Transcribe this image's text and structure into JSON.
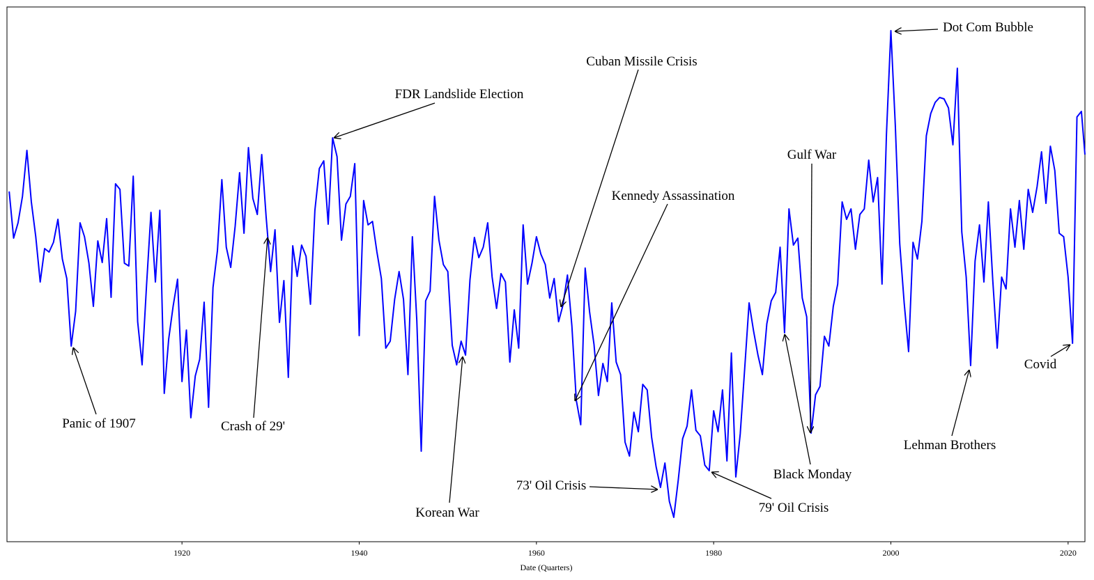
{
  "chart_data": {
    "type": "line",
    "xlabel": "Date (Quarters)",
    "xlim": [
      1900.25,
      2021.9
    ],
    "ylim": [
      0,
      768
    ],
    "xticks": [
      1920,
      1940,
      1960,
      1980,
      2000,
      2020
    ],
    "color": "#0000ff",
    "x": [
      1900.5,
      1901,
      1901.5,
      1902,
      1902.5,
      1903,
      1903.5,
      1904,
      1904.5,
      1905,
      1905.5,
      1906,
      1906.5,
      1907,
      1907.5,
      1908,
      1908.5,
      1909,
      1909.5,
      1910,
      1910.5,
      1911,
      1911.5,
      1912,
      1912.5,
      1913,
      1913.5,
      1914,
      1914.5,
      1915,
      1915.5,
      1916,
      1916.5,
      1917,
      1917.5,
      1918,
      1918.5,
      1919,
      1919.5,
      1920,
      1920.5,
      1921,
      1921.5,
      1922,
      1922.5,
      1923,
      1923.5,
      1924,
      1924.5,
      1925,
      1925.5,
      1926,
      1926.5,
      1927,
      1927.5,
      1928,
      1928.5,
      1929,
      1929.5,
      1930,
      1930.5,
      1931,
      1931.5,
      1932,
      1932.5,
      1933,
      1933.5,
      1934,
      1934.5,
      1935,
      1935.5,
      1936,
      1936.5,
      1937,
      1937.5,
      1938,
      1938.5,
      1939,
      1939.5,
      1940,
      1940.5,
      1941,
      1941.5,
      1942,
      1942.5,
      1943,
      1943.5,
      1944,
      1944.5,
      1945,
      1945.5,
      1946,
      1946.5,
      1947,
      1947.5,
      1948,
      1948.5,
      1949,
      1949.5,
      1950,
      1950.5,
      1951,
      1951.5,
      1952,
      1952.5,
      1953,
      1953.5,
      1954,
      1954.5,
      1955,
      1955.5,
      1956,
      1956.5,
      1957,
      1957.5,
      1958,
      1958.5,
      1959,
      1959.5,
      1960,
      1960.5,
      1961,
      1961.5,
      1962,
      1962.5,
      1963,
      1963.5,
      1964,
      1964.5,
      1965,
      1965.5,
      1966,
      1966.5,
      1967,
      1967.5,
      1968,
      1968.5,
      1969,
      1969.5,
      1970,
      1970.5,
      1971,
      1971.5,
      1972,
      1972.5,
      1973,
      1973.5,
      1974,
      1974.5,
      1975,
      1975.5,
      1976,
      1976.5,
      1977,
      1977.5,
      1978,
      1978.5,
      1979,
      1979.5,
      1980,
      1980.5,
      1981,
      1981.5,
      1982,
      1982.5,
      1983,
      1983.5,
      1984,
      1984.5,
      1985,
      1985.5,
      1986,
      1986.5,
      1987,
      1987.5,
      1988,
      1988.5,
      1989,
      1989.5,
      1990,
      1990.5,
      1991,
      1991.5,
      1992,
      1992.5,
      1993,
      1993.5,
      1994,
      1994.5,
      1995,
      1995.5,
      1996,
      1996.5,
      1997,
      1997.5,
      1998,
      1998.5,
      1999,
      1999.5,
      2000,
      2000.5,
      2001,
      2001.5,
      2002,
      2002.5,
      2003,
      2003.5,
      2004,
      2004.5,
      2005,
      2005.5,
      2006,
      2006.5,
      2007,
      2007.5,
      2008,
      2008.5,
      2009,
      2009.5,
      2010,
      2010.5,
      2011,
      2011.5,
      2012,
      2012.5,
      2013,
      2013.5,
      2014,
      2014.5,
      2015,
      2015.5,
      2016,
      2016.5,
      2017,
      2017.5,
      2018,
      2018.5,
      2019,
      2019.5,
      2020,
      2020.5,
      2021,
      2021.5,
      2021.9
    ],
    "values": [
      503,
      436,
      458,
      496,
      562,
      488,
      438,
      373,
      421,
      416,
      430,
      463,
      406,
      378,
      281,
      331,
      458,
      438,
      400,
      338,
      432,
      401,
      464,
      351,
      514,
      506,
      400,
      396,
      525,
      316,
      254,
      368,
      473,
      373,
      476,
      213,
      291,
      338,
      377,
      230,
      304,
      178,
      238,
      262,
      344,
      193,
      365,
      418,
      520,
      423,
      394,
      453,
      530,
      443,
      566,
      493,
      470,
      556,
      466,
      388,
      448,
      315,
      375,
      236,
      425,
      381,
      426,
      410,
      341,
      476,
      536,
      547,
      456,
      580,
      553,
      433,
      485,
      496,
      543,
      296,
      490,
      455,
      460,
      416,
      378,
      278,
      288,
      348,
      388,
      348,
      240,
      438,
      318,
      130,
      346,
      360,
      496,
      433,
      398,
      388,
      282,
      254,
      288,
      268,
      376,
      437,
      408,
      423,
      458,
      380,
      335,
      385,
      373,
      258,
      333,
      278,
      455,
      370,
      400,
      438,
      413,
      398,
      350,
      378,
      316,
      340,
      383,
      310,
      203,
      168,
      393,
      330,
      283,
      210,
      256,
      230,
      343,
      258,
      240,
      143,
      123,
      186,
      158,
      226,
      218,
      150,
      108,
      78,
      113,
      58,
      35,
      88,
      148,
      166,
      218,
      160,
      152,
      110,
      102,
      188,
      158,
      218,
      116,
      271,
      93,
      155,
      248,
      343,
      303,
      268,
      240,
      313,
      346,
      358,
      423,
      300,
      478,
      426,
      436,
      350,
      323,
      156,
      211,
      223,
      295,
      281,
      338,
      370,
      488,
      463,
      478,
      420,
      470,
      478,
      548,
      488,
      523,
      370,
      585,
      734,
      598,
      428,
      343,
      273,
      430,
      406,
      460,
      583,
      615,
      631,
      638,
      636,
      623,
      570,
      680,
      445,
      380,
      253,
      403,
      455,
      373,
      488,
      375,
      278,
      380,
      363,
      478,
      423,
      490,
      420,
      506,
      473,
      510,
      560,
      486,
      568,
      533,
      443,
      438,
      380,
      285,
      610,
      618,
      556
    ],
    "annotations": [
      {
        "text": "Panic of 1907"
      },
      {
        "text": "Crash of 29'"
      },
      {
        "text": "FDR Landslide Election"
      },
      {
        "text": "Korean War"
      },
      {
        "text": "Cuban Missile Crisis"
      },
      {
        "text": "Kennedy Assassination"
      },
      {
        "text": "73' Oil Crisis"
      },
      {
        "text": "Gulf War"
      },
      {
        "text": "Black Monday"
      },
      {
        "text": "79' Oil Crisis"
      },
      {
        "text": "Dot Com Bubble"
      },
      {
        "text": "Lehman Brothers"
      },
      {
        "text": "Covid"
      }
    ]
  }
}
